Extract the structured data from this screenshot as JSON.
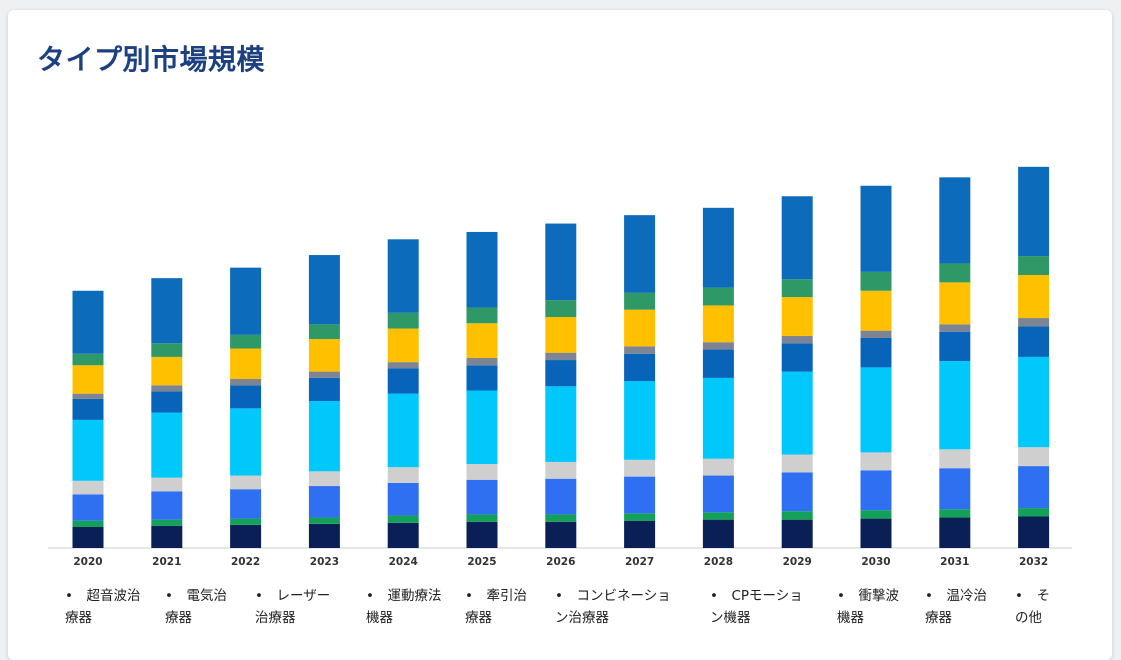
{
  "page": {
    "title": "タイプ別市場規模"
  },
  "colors": {
    "title": "#1c4080",
    "axis": "#cccccc",
    "segments": [
      "#0b1f57",
      "#13a15a",
      "#2f6ff2",
      "#cfcfcf",
      "#00c8fb",
      "#0864b8",
      "#7d8594",
      "#ffc000",
      "#2e9966",
      "#0d6bbc"
    ]
  },
  "legend": {
    "items": [
      {
        "line1": "•　超音波治",
        "line2": "療器"
      },
      {
        "line1": "•　電気治",
        "line2": "療器"
      },
      {
        "line1": "•　レーザー",
        "line2": "治療器"
      },
      {
        "line1": "•　運動療法",
        "line2": "機器"
      },
      {
        "line1": "•　牽引治",
        "line2": "療器"
      },
      {
        "line1": "•　コンビネーショ",
        "line2": "ン治療器"
      },
      {
        "line1": "•　CPモーショ",
        "line2": "ン機器"
      },
      {
        "line1": "•　衝撃波",
        "line2": "機器"
      },
      {
        "line1": "•　温冷治",
        "line2": "療器"
      },
      {
        "line1": "•　そ",
        "line2": "の他"
      }
    ]
  },
  "chart_data": {
    "type": "bar",
    "stacked": true,
    "categories": [
      "2020",
      "2021",
      "2022",
      "2023",
      "2024",
      "2025",
      "2026",
      "2027",
      "2028",
      "2029",
      "2030",
      "2031",
      "2032"
    ],
    "series": [
      {
        "values": [
          20,
          21,
          22,
          23,
          24,
          25,
          25,
          26,
          27,
          27,
          28,
          29,
          30
        ]
      },
      {
        "values": [
          6,
          6,
          6,
          6,
          7,
          7,
          7,
          7,
          7,
          8,
          8,
          8,
          8
        ]
      },
      {
        "values": [
          25,
          27,
          28,
          30,
          31,
          33,
          34,
          35,
          35,
          37,
          38,
          39,
          40
        ]
      },
      {
        "values": [
          13,
          13,
          13,
          14,
          15,
          15,
          16,
          16,
          16,
          17,
          17,
          18,
          18
        ]
      },
      {
        "values": [
          58,
          62,
          64,
          67,
          70,
          70,
          72,
          75,
          77,
          79,
          81,
          84,
          86
        ]
      },
      {
        "values": [
          20,
          20,
          22,
          22,
          24,
          24,
          25,
          26,
          27,
          27,
          28,
          28,
          29
        ]
      },
      {
        "values": [
          5,
          6,
          6,
          6,
          6,
          7,
          7,
          7,
          7,
          7,
          7,
          7,
          8
        ]
      },
      {
        "values": [
          27,
          27,
          29,
          31,
          32,
          33,
          34,
          35,
          35,
          37,
          38,
          40,
          41
        ]
      },
      {
        "values": [
          11,
          13,
          13,
          14,
          15,
          15,
          16,
          16,
          17,
          17,
          18,
          18,
          18
        ]
      },
      {
        "values": [
          60,
          62,
          64,
          66,
          70,
          72,
          73,
          74,
          76,
          79,
          82,
          82,
          85
        ]
      }
    ],
    "ylim": [
      0,
      400
    ],
    "grid": false,
    "legend_position": "bottom"
  }
}
